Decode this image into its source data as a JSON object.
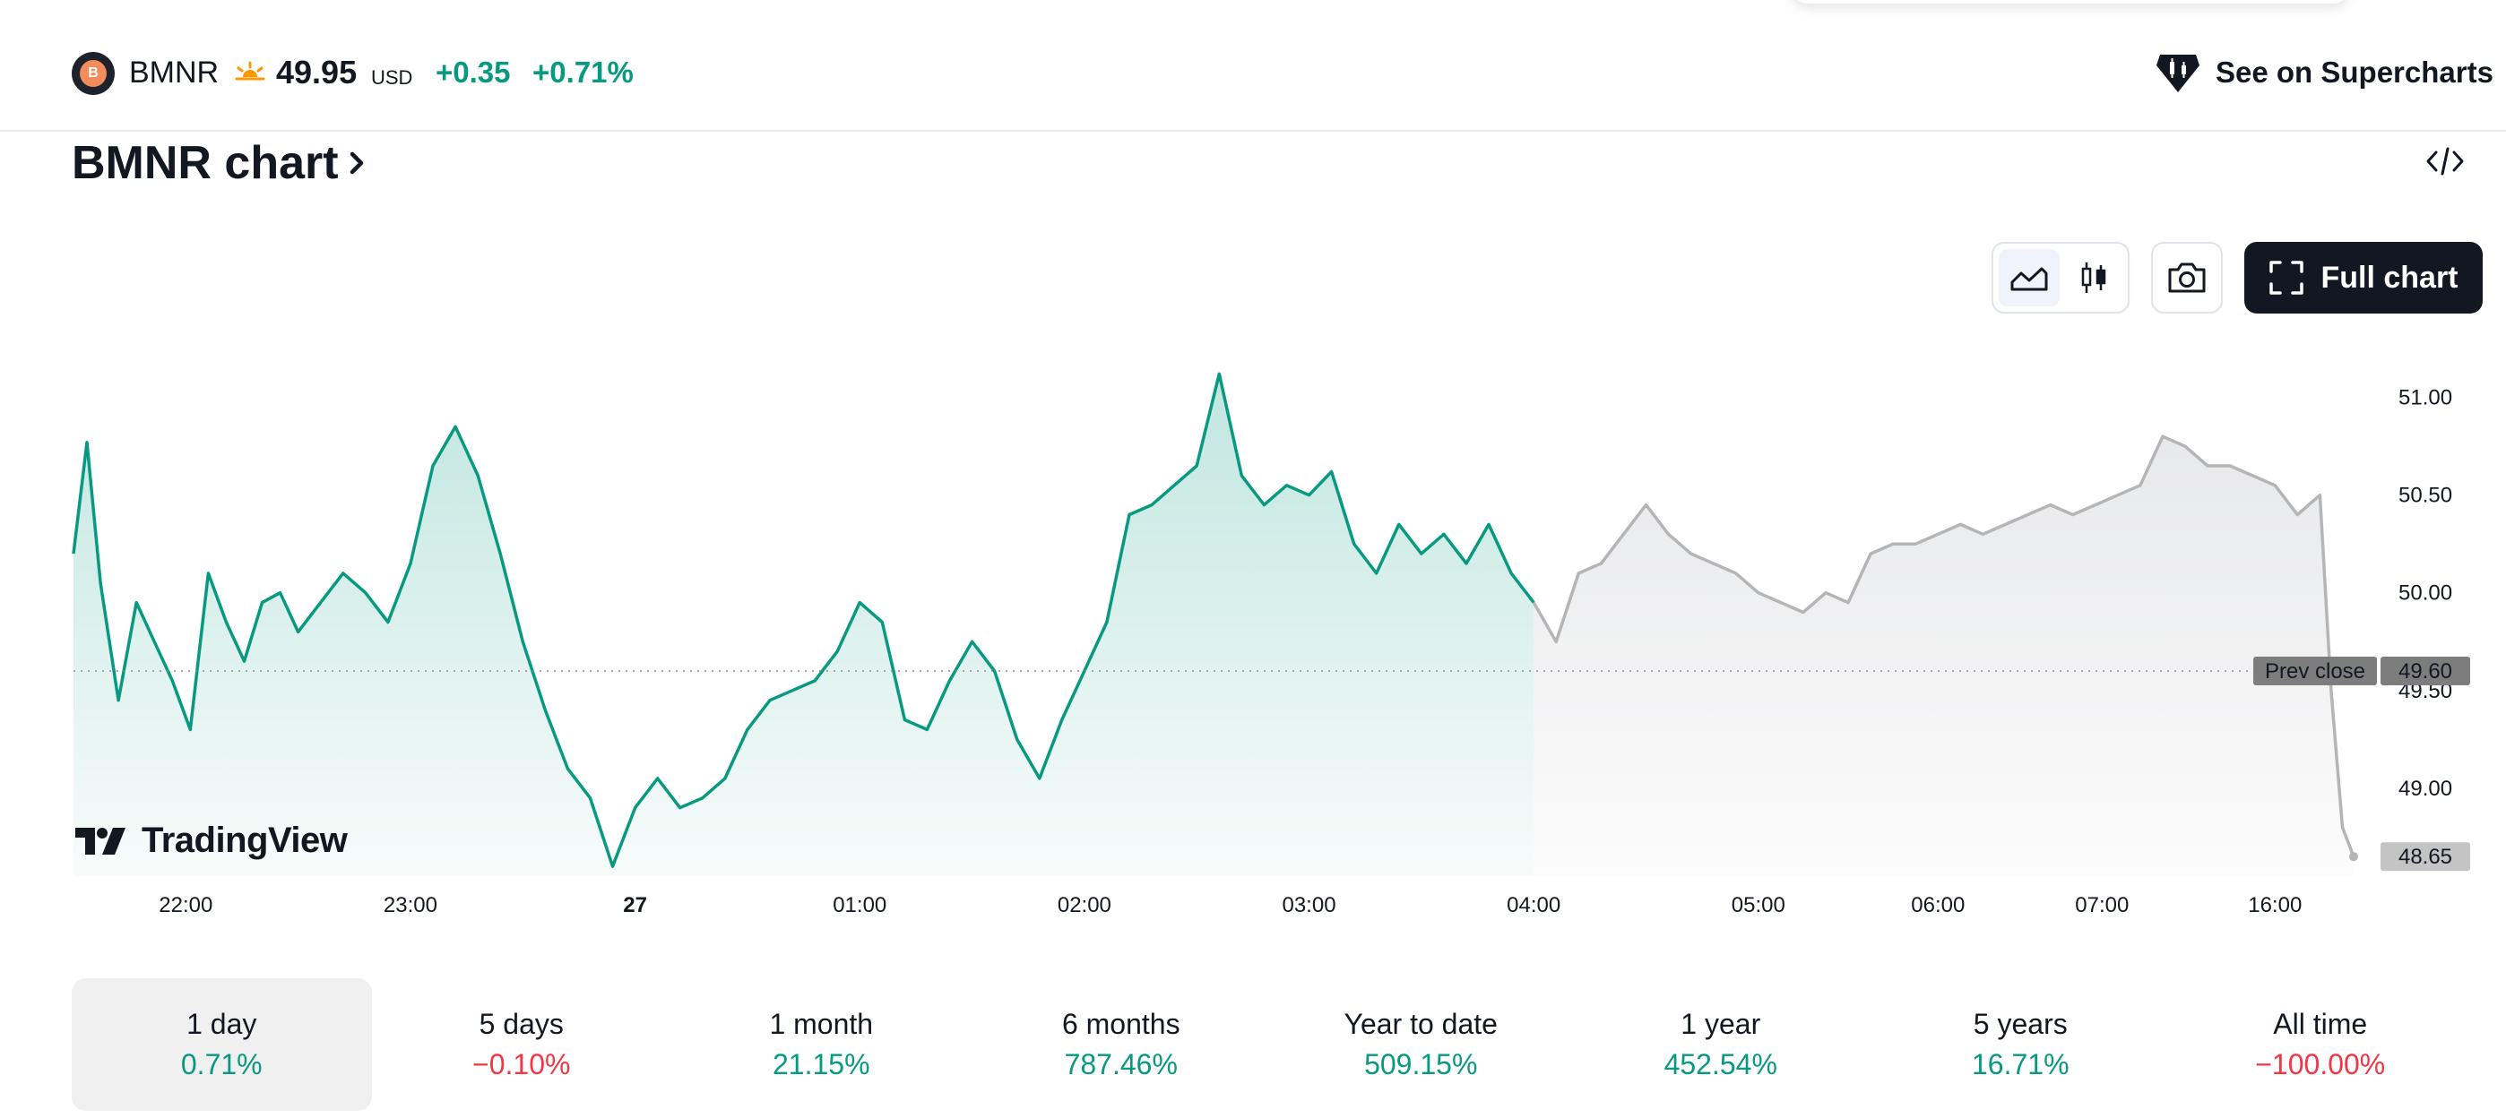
{
  "header": {
    "symbol": "BMNR",
    "price": "49.95",
    "currency": "USD",
    "change": "+0.35",
    "change_pct": "+0.71%",
    "supercharts_label": "See on Supercharts",
    "logo_letter": "B"
  },
  "chart_title": "BMNR chart",
  "toolbar": {
    "full_chart_label": "Full chart"
  },
  "brand": {
    "name": "TradingView"
  },
  "colors": {
    "positive": "#089981",
    "negative": "#f23645",
    "extended_line": "#b5b5b5",
    "prev_close_label_bg": "#7d7d7d"
  },
  "chart_data": {
    "type": "area",
    "title": "",
    "ylim": [
      48.55,
      51.2
    ],
    "y_ticks": [
      "51.00",
      "50.50",
      "50.00",
      "49.50",
      "49.00"
    ],
    "x_ticks": [
      "22:00",
      "23:00",
      "27",
      "01:00",
      "02:00",
      "03:00",
      "04:00",
      "05:00",
      "06:00",
      "07:00",
      "16:00"
    ],
    "prev_close": {
      "label": "Prev close",
      "value": "49.60"
    },
    "last_value_label": "48.65",
    "grid": false,
    "series": [
      {
        "session": "regular",
        "x": [
          0,
          0.06,
          0.12,
          0.2,
          0.28,
          0.36,
          0.44,
          0.52,
          0.6,
          0.68,
          0.76,
          0.84,
          0.92,
          1.0,
          1.1,
          1.2,
          1.3,
          1.4,
          1.5,
          1.6,
          1.7,
          1.8,
          1.9,
          2.0,
          2.1,
          2.2,
          2.3,
          2.4,
          2.5,
          2.6,
          2.7,
          2.8,
          2.9,
          3.0,
          3.1,
          3.2,
          3.3,
          3.4,
          3.5,
          3.6,
          3.7,
          3.8,
          3.9,
          4.0,
          4.1,
          4.2,
          4.3,
          4.4,
          4.5,
          4.6,
          4.7,
          4.8,
          4.9,
          5.0,
          5.1,
          5.2,
          5.3,
          5.4,
          5.5,
          5.6,
          5.7,
          5.8,
          5.9,
          6.0,
          6.1,
          6.2,
          6.3,
          6.4,
          6.5
        ],
        "values": [
          50.2,
          50.77,
          50.05,
          49.45,
          49.95,
          49.75,
          49.55,
          49.3,
          50.1,
          49.85,
          49.65,
          49.95,
          50.0,
          49.8,
          49.95,
          50.1,
          50.0,
          49.85,
          50.15,
          50.65,
          50.85,
          50.6,
          50.2,
          49.75,
          49.4,
          49.1,
          48.95,
          48.6,
          48.9,
          49.05,
          48.9,
          48.95,
          49.05,
          49.3,
          49.45,
          49.5,
          49.55,
          49.7,
          49.95,
          49.85,
          49.35,
          49.3,
          49.55,
          49.75,
          49.6,
          49.25,
          49.05,
          49.35,
          49.6,
          49.85,
          50.4,
          50.45,
          50.55,
          50.65,
          51.12,
          50.6,
          50.45,
          50.55,
          50.5,
          50.62,
          50.25,
          50.1,
          50.35,
          50.2,
          50.3,
          50.15,
          50.35,
          50.1,
          49.95
        ]
      },
      {
        "session": "extended",
        "x": [
          6.5,
          6.6,
          6.7,
          6.8,
          6.9,
          7.0,
          7.1,
          7.2,
          7.3,
          7.4,
          7.5,
          7.6,
          7.7,
          7.8,
          7.9,
          8.0,
          8.1,
          8.2,
          8.3,
          8.4,
          8.5,
          8.6,
          8.7,
          8.8,
          8.9,
          9.0,
          9.1,
          9.2,
          9.3,
          9.4,
          9.5,
          9.6,
          9.7,
          9.8,
          9.9,
          10.0,
          10.05,
          10.1,
          10.15
        ],
        "values": [
          49.95,
          49.75,
          50.1,
          50.15,
          50.3,
          50.45,
          50.3,
          50.2,
          50.15,
          50.1,
          50.0,
          49.95,
          49.9,
          50.0,
          49.95,
          50.2,
          50.25,
          50.25,
          50.3,
          50.35,
          50.3,
          50.35,
          50.4,
          50.45,
          50.4,
          50.45,
          50.5,
          50.55,
          50.8,
          50.75,
          50.65,
          50.65,
          50.6,
          50.55,
          50.4,
          50.5,
          49.5,
          48.8,
          48.65
        ]
      }
    ]
  },
  "periods": [
    {
      "label": "1 day",
      "value": "0.71%",
      "trend": "pos",
      "selected": true
    },
    {
      "label": "5 days",
      "value": "−0.10%",
      "trend": "neg",
      "selected": false
    },
    {
      "label": "1 month",
      "value": "21.15%",
      "trend": "pos",
      "selected": false
    },
    {
      "label": "6 months",
      "value": "787.46%",
      "trend": "pos",
      "selected": false
    },
    {
      "label": "Year to date",
      "value": "509.15%",
      "trend": "pos",
      "selected": false
    },
    {
      "label": "1 year",
      "value": "452.54%",
      "trend": "pos",
      "selected": false
    },
    {
      "label": "5 years",
      "value": "16.71%",
      "trend": "pos",
      "selected": false
    },
    {
      "label": "All time",
      "value": "−100.00%",
      "trend": "neg",
      "selected": false
    }
  ]
}
